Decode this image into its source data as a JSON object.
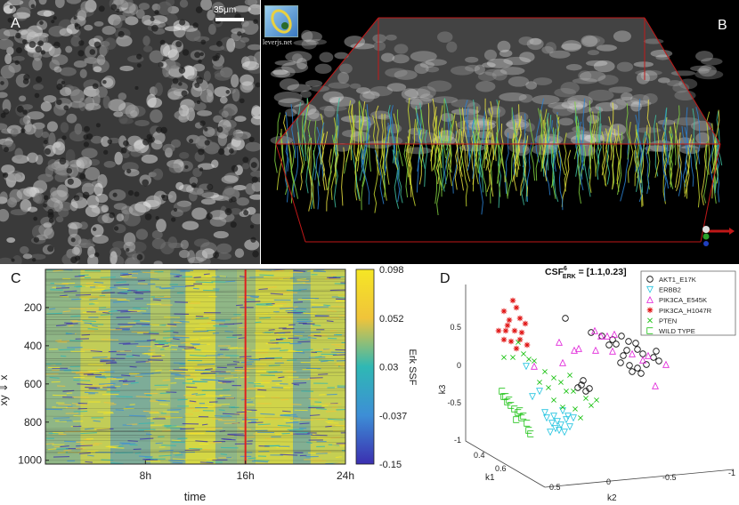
{
  "panels": {
    "a": {
      "label": "A",
      "scale_bar": "35μm"
    },
    "b": {
      "label": "B",
      "logo_text": "leverjs.net"
    },
    "c": {
      "label": "C"
    },
    "d": {
      "label": "D"
    }
  },
  "chart_data": [
    {
      "type": "heatmap",
      "panel": "C",
      "xlabel": "time",
      "ylabel": "xy ⇓ x",
      "x_ticks": [
        "8h",
        "16h",
        "24h"
      ],
      "x_tick_values": [
        8,
        16,
        24
      ],
      "x_range": [
        0,
        24
      ],
      "y_ticks": [
        200,
        400,
        600,
        800,
        1000
      ],
      "y_range": [
        0,
        1020
      ],
      "y_reversed": true,
      "colorbar": {
        "label": "Erk SSF",
        "ticks": [
          "0.098",
          "0.052",
          "0.03",
          "-0.037",
          "-0.15"
        ],
        "colors": [
          "#f5e625",
          "#f0c43a",
          "#2fb8b4",
          "#3d8ed6",
          "#3b2fb0"
        ]
      },
      "marker_line_x": 16,
      "marker_line_color": "#e0201e",
      "bands": [
        {
          "from": 0,
          "to": 2.8,
          "level": 0.45
        },
        {
          "from": 2.8,
          "to": 5.2,
          "level": 0.72
        },
        {
          "from": 5.2,
          "to": 8.4,
          "level": 0.35
        },
        {
          "from": 8.4,
          "to": 10.0,
          "level": 0.62
        },
        {
          "from": 10.0,
          "to": 11.2,
          "level": 0.4
        },
        {
          "from": 11.2,
          "to": 13.6,
          "level": 0.82
        },
        {
          "from": 13.6,
          "to": 15.3,
          "level": 0.45
        },
        {
          "from": 15.3,
          "to": 16.8,
          "level": 0.55
        },
        {
          "from": 16.8,
          "to": 19.8,
          "level": 0.8
        },
        {
          "from": 19.8,
          "to": 21.2,
          "level": 0.38
        },
        {
          "from": 21.2,
          "to": 24,
          "level": 0.74
        }
      ]
    },
    {
      "type": "scatter",
      "panel": "D",
      "title_main": "CSF",
      "title_sup": "6",
      "title_sub": "ERK",
      "title_rest": " = [1.1,0.23]",
      "xlabel": "k2",
      "ylabel": "k1",
      "zlabel": "k3",
      "k3_ticks": [
        "0.5",
        "0",
        "-0.5",
        "-1"
      ],
      "k1_ticks": [
        "0.4",
        "0.6"
      ],
      "k2_ticks": [
        "0.5",
        "0",
        "-0.5",
        "-1"
      ],
      "series": [
        {
          "name": "AKT1_E17K",
          "marker": "circle",
          "color": "#000000",
          "points": [
            [
              635,
              358
            ],
            [
              664,
              374
            ],
            [
              676,
              378
            ],
            [
              688,
              382
            ],
            [
              698,
              378
            ],
            [
              692,
              387
            ],
            [
              706,
              384
            ],
            [
              714,
              386
            ],
            [
              716,
              393
            ],
            [
              704,
              394
            ],
            [
              700,
              400
            ],
            [
              722,
              398
            ],
            [
              734,
              402
            ],
            [
              740,
              406
            ],
            [
              726,
              410
            ],
            [
              716,
              414
            ],
            [
              707,
              411
            ],
            [
              697,
              408
            ],
            [
              710,
              418
            ],
            [
              720,
              420
            ],
            [
              653,
              433
            ],
            [
              658,
              440
            ],
            [
              662,
              437
            ],
            [
              649,
              436
            ],
            [
              655,
              428
            ],
            [
              737,
              395
            ],
            [
              684,
              388
            ]
          ]
        },
        {
          "name": "ERBB2",
          "marker": "triangle-down",
          "color": "#22c4e0",
          "points": [
            [
              614,
              470
            ],
            [
              620,
              476
            ],
            [
              626,
              474
            ],
            [
              630,
              478
            ],
            [
              636,
              472
            ],
            [
              640,
              480
            ],
            [
              628,
              484
            ],
            [
              634,
              486
            ],
            [
              622,
              468
            ],
            [
              612,
              464
            ],
            [
              638,
              468
            ],
            [
              632,
              462
            ],
            [
              606,
              440
            ],
            [
              598,
              446
            ],
            [
              624,
              482
            ],
            [
              618,
              486
            ],
            [
              644,
              470
            ],
            [
              591,
              412
            ]
          ]
        },
        {
          "name": "PIK3CA_E545K",
          "marker": "triangle",
          "color": "#e020d8",
          "points": [
            [
              628,
              385
            ],
            [
              632,
              408
            ],
            [
              650,
              392
            ],
            [
              668,
              372
            ],
            [
              675,
              378
            ],
            [
              682,
              378
            ],
            [
              690,
              376
            ],
            [
              669,
              394
            ],
            [
              710,
              398
            ],
            [
              722,
              405
            ],
            [
              728,
              400
            ],
            [
              748,
              410
            ],
            [
              736,
              434
            ],
            [
              688,
              395
            ],
            [
              600,
              412
            ],
            [
              645,
              394
            ]
          ]
        },
        {
          "name": "PIK3CA_H1047R",
          "marker": "star",
          "color": "#e01010",
          "points": [
            [
              576,
              338
            ],
            [
              566,
              350
            ],
            [
              580,
              346
            ],
            [
              572,
              360
            ],
            [
              584,
              358
            ],
            [
              590,
              364
            ],
            [
              560,
              372
            ],
            [
              568,
              372
            ],
            [
              578,
              372
            ],
            [
              586,
              374
            ],
            [
              566,
              382
            ],
            [
              574,
              384
            ],
            [
              584,
              382
            ],
            [
              592,
              388
            ],
            [
              580,
              392
            ],
            [
              570,
              366
            ]
          ]
        },
        {
          "name": "PTEN",
          "marker": "x",
          "color": "#22c41a",
          "points": [
            [
              582,
              385
            ],
            [
              588,
              398
            ],
            [
              576,
              402
            ],
            [
              594,
              404
            ],
            [
              600,
              406
            ],
            [
              612,
              418
            ],
            [
              622,
              425
            ],
            [
              630,
              430
            ],
            [
              636,
              440
            ],
            [
              644,
              440
            ],
            [
              606,
              430
            ],
            [
              616,
              436
            ],
            [
              658,
              448
            ],
            [
              670,
              450
            ],
            [
              664,
              456
            ],
            [
              632,
              458
            ],
            [
              622,
              450
            ],
            [
              646,
              460
            ],
            [
              652,
              470
            ],
            [
              566,
              402
            ],
            [
              640,
              422
            ]
          ]
        },
        {
          "name": "WILD TYPE",
          "marker": "square-open",
          "color": "#22c41a",
          "points": [
            [
              564,
              440
            ],
            [
              568,
              446
            ],
            [
              570,
              452
            ],
            [
              574,
              456
            ],
            [
              578,
              460
            ],
            [
              582,
              464
            ],
            [
              588,
              468
            ],
            [
              580,
              472
            ],
            [
              592,
              476
            ],
            [
              596,
              488
            ],
            [
              594,
              484
            ],
            [
              586,
              470
            ],
            [
              572,
              450
            ],
            [
              584,
              462
            ],
            [
              566,
              446
            ]
          ]
        }
      ]
    }
  ]
}
